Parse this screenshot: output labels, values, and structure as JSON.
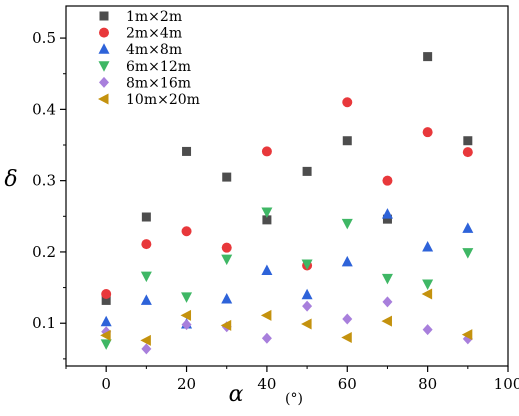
{
  "chart_data": {
    "type": "scatter",
    "title": "",
    "xlabel": "α",
    "xunit": "(°)",
    "ylabel": "δ",
    "xlim": [
      -10,
      100
    ],
    "ylim": [
      0.04,
      0.545
    ],
    "xticks": [
      0,
      20,
      40,
      60,
      80,
      100
    ],
    "xtick_labels": [
      "0",
      "20",
      "40",
      "60",
      "80",
      "100"
    ],
    "yticks": [
      0.1,
      0.2,
      0.3,
      0.4,
      0.5
    ],
    "ytick_labels": [
      "0.1",
      "0.2",
      "0.3",
      "0.4",
      "0.5"
    ],
    "grid": false,
    "legend_position": "top-left",
    "series": [
      {
        "name": "1m×2m",
        "marker": "square",
        "color": "#4d4d4d",
        "x": [
          0,
          10,
          20,
          30,
          40,
          50,
          60,
          70,
          80,
          90
        ],
        "y": [
          0.132,
          0.249,
          0.341,
          0.305,
          0.245,
          0.313,
          0.356,
          0.246,
          0.474,
          0.356
        ]
      },
      {
        "name": "2m×4m",
        "marker": "circle",
        "color": "#e8383b",
        "x": [
          0,
          10,
          20,
          30,
          40,
          50,
          60,
          70,
          80,
          90
        ],
        "y": [
          0.141,
          0.211,
          0.229,
          0.206,
          0.341,
          0.181,
          0.41,
          0.3,
          0.368,
          0.34
        ]
      },
      {
        "name": "4m×8m",
        "marker": "triangle-up",
        "color": "#2e63d9",
        "x": [
          0,
          10,
          20,
          30,
          40,
          50,
          60,
          70,
          80,
          90
        ],
        "y": [
          0.102,
          0.132,
          0.099,
          0.134,
          0.174,
          0.14,
          0.186,
          0.253,
          0.207,
          0.233
        ]
      },
      {
        "name": "6m×12m",
        "marker": "triangle-down",
        "color": "#3fb765",
        "x": [
          0,
          10,
          20,
          30,
          40,
          50,
          60,
          70,
          80,
          90
        ],
        "y": [
          0.071,
          0.166,
          0.137,
          0.19,
          0.256,
          0.183,
          0.24,
          0.163,
          0.155,
          0.199
        ]
      },
      {
        "name": "8m×16m",
        "marker": "diamond",
        "color": "#a87fdc",
        "x": [
          0,
          10,
          20,
          30,
          40,
          50,
          60,
          70,
          80,
          90
        ],
        "y": [
          0.088,
          0.064,
          0.098,
          0.095,
          0.079,
          0.124,
          0.106,
          0.13,
          0.091,
          0.078
        ]
      },
      {
        "name": "10m×20m",
        "marker": "triangle-left",
        "color": "#c4920e",
        "x": [
          0,
          10,
          20,
          30,
          40,
          50,
          60,
          70,
          80,
          90
        ],
        "y": [
          0.083,
          0.076,
          0.111,
          0.097,
          0.111,
          0.099,
          0.08,
          0.103,
          0.141,
          0.084
        ]
      }
    ]
  }
}
